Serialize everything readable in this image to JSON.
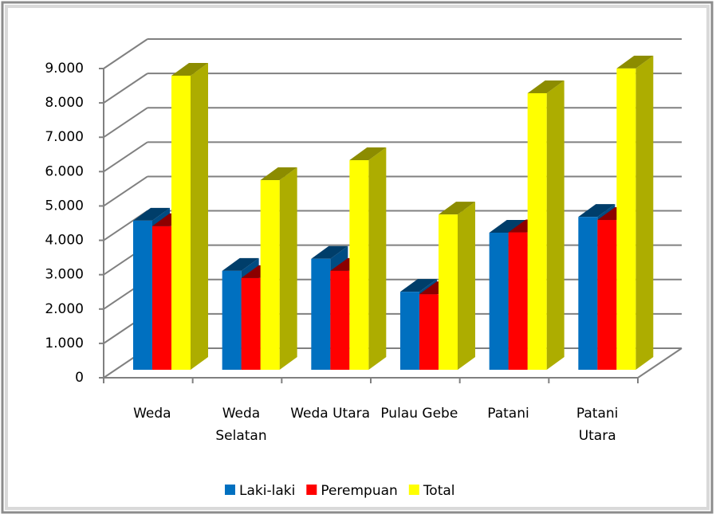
{
  "chart_data": {
    "type": "bar3d",
    "categories": [
      "Weda",
      "Weda Selatan",
      "Weda Utara",
      "Pulau Gebe",
      "Patani",
      "Patani Utara"
    ],
    "series": [
      {
        "name": "Laki-laki",
        "color": "#0070c0",
        "values": [
          4340,
          2880,
          3230,
          2270,
          3990,
          4450
        ]
      },
      {
        "name": "Perempuan",
        "color": "#ff0000",
        "values": [
          4180,
          2670,
          2880,
          2200,
          4000,
          4360
        ]
      },
      {
        "name": "Total",
        "color": "#ffff00",
        "values": [
          8560,
          5520,
          6100,
          4520,
          8050,
          8770
        ]
      }
    ],
    "ylim": [
      0,
      9000
    ],
    "yticks": [
      0,
      {
        "value": 1000,
        "label": "1.000"
      },
      {
        "value": 2000,
        "label": "2.000"
      },
      {
        "value": 3000,
        "label": "3.000"
      },
      {
        "value": 4000,
        "label": "4.000"
      },
      {
        "value": 5000,
        "label": "5.000"
      },
      {
        "value": 6000,
        "label": "6.000"
      },
      {
        "value": 7000,
        "label": "7.000"
      },
      {
        "value": 8000,
        "label": "8.000"
      },
      {
        "value": 9000,
        "label": "9.000"
      }
    ],
    "grid": true,
    "legend": "bottom"
  }
}
